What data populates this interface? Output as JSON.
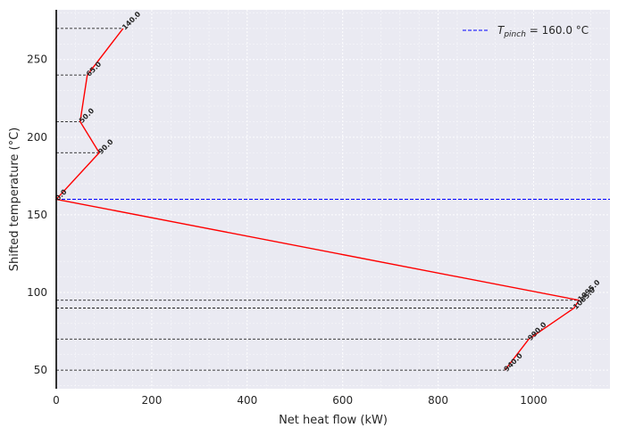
{
  "chart_data": {
    "type": "line",
    "title": "",
    "xlabel": "Net heat flow (kW)",
    "ylabel": "Shifted temperature (°C)",
    "xlim": [
      0,
      1160
    ],
    "ylim": [
      38,
      282
    ],
    "xticks": [
      0,
      200,
      400,
      600,
      800,
      1000
    ],
    "yticks": [
      50,
      100,
      150,
      200,
      250
    ],
    "grid": "on (major and minor, dotted white)",
    "legend_position": "top-right",
    "series": [
      {
        "name": "",
        "color": "#ff0000",
        "style": "solid",
        "points": [
          {
            "x": 140.0,
            "y": 270,
            "label": "140.0"
          },
          {
            "x": 65.0,
            "y": 240,
            "label": "65.0"
          },
          {
            "x": 50.0,
            "y": 210,
            "label": "50.0"
          },
          {
            "x": 90.0,
            "y": 190,
            "label": "90.0"
          },
          {
            "x": 0.0,
            "y": 160,
            "label": "0.0"
          },
          {
            "x": 1095.0,
            "y": 95,
            "label": "1095.0"
          },
          {
            "x": 1085.0,
            "y": 90,
            "label": "1085.0"
          },
          {
            "x": 990.0,
            "y": 70,
            "label": "990.0"
          },
          {
            "x": 940.0,
            "y": 50,
            "label": "940.0"
          }
        ]
      }
    ],
    "interval_lines": [
      {
        "y": 270,
        "x": 140
      },
      {
        "y": 240,
        "x": 65
      },
      {
        "y": 210,
        "x": 50
      },
      {
        "y": 190,
        "x": 90
      },
      {
        "y": 95,
        "x": 1095
      },
      {
        "y": 90,
        "x": 1085
      },
      {
        "y": 70,
        "x": 990
      },
      {
        "y": 50,
        "x": 940
      }
    ],
    "pinch": {
      "y": 160,
      "color": "#0000ff",
      "legend_symbol": "T",
      "legend_subscript": "pinch",
      "legend_value": " = 160.0 °C"
    }
  }
}
